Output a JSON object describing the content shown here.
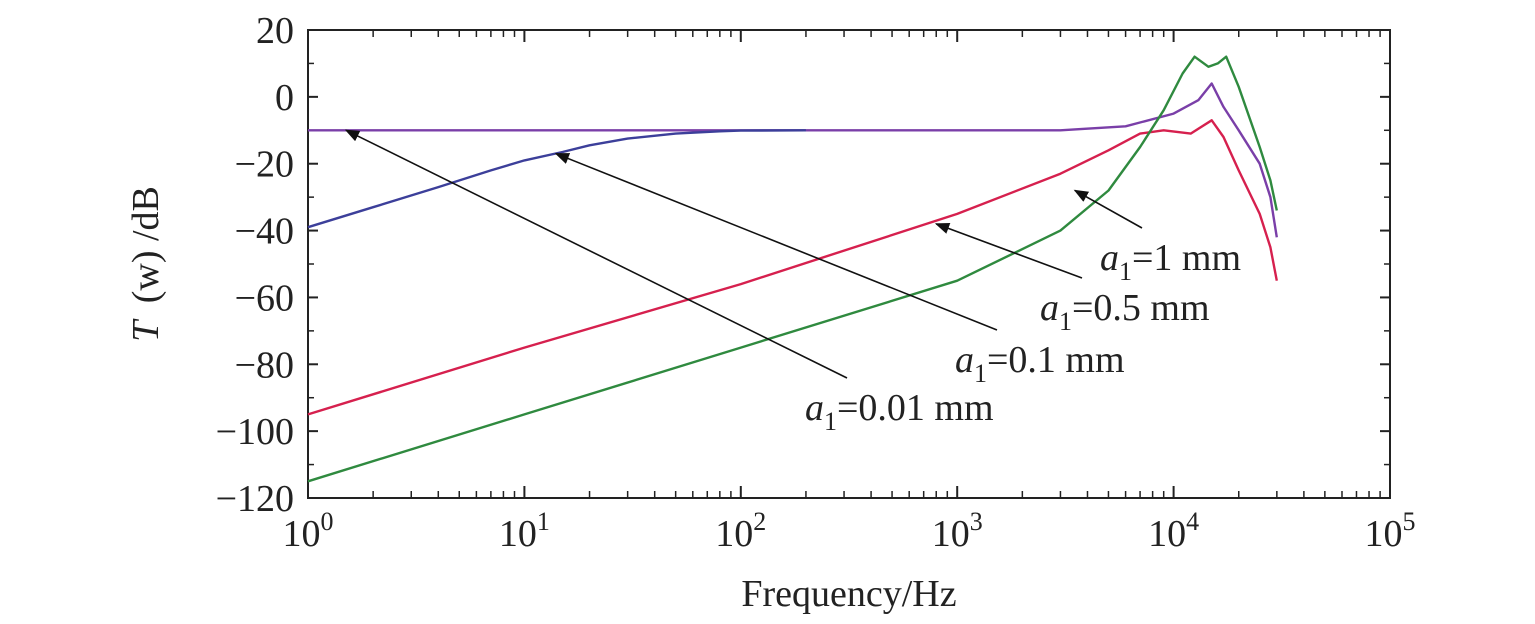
{
  "chart_data": {
    "type": "line",
    "xscale": "log",
    "xlim": [
      1,
      100000
    ],
    "ylim": [
      -120,
      20
    ],
    "xlabel": "Frequency/Hz",
    "ylabel_symbol": "T",
    "ylabel_arg": "(w)",
    "ylabel_unit": "/dB",
    "grid": false,
    "x_ticks": [
      {
        "base": "10",
        "exp": "0",
        "value": 1
      },
      {
        "base": "10",
        "exp": "1",
        "value": 10
      },
      {
        "base": "10",
        "exp": "2",
        "value": 100
      },
      {
        "base": "10",
        "exp": "3",
        "value": 1000
      },
      {
        "base": "10",
        "exp": "4",
        "value": 10000
      },
      {
        "base": "10",
        "exp": "5",
        "value": 100000
      }
    ],
    "y_ticks": [
      {
        "value": 20,
        "label": "20"
      },
      {
        "value": 0,
        "label": "0"
      },
      {
        "value": -20,
        "label": "−20"
      },
      {
        "value": -40,
        "label": "−40"
      },
      {
        "value": -60,
        "label": "−60"
      },
      {
        "value": -80,
        "label": "−80"
      },
      {
        "value": -100,
        "label": "−100"
      },
      {
        "value": -120,
        "label": "−120"
      }
    ],
    "series": [
      {
        "name": "a1=0.01 mm",
        "color": "#7a3fa8",
        "points": [
          [
            1,
            -10
          ],
          [
            10,
            -10
          ],
          [
            100,
            -10
          ],
          [
            1000,
            -10
          ],
          [
            3000,
            -10
          ],
          [
            6000,
            -8.8
          ],
          [
            10000,
            -5
          ],
          [
            13000,
            -1
          ],
          [
            15000,
            4
          ],
          [
            17000,
            -3
          ],
          [
            20000,
            -10
          ],
          [
            25000,
            -20
          ],
          [
            28000,
            -30
          ],
          [
            30000,
            -42
          ]
        ]
      },
      {
        "name": "a1=0.1 mm",
        "color": "#3c3f9a",
        "points": [
          [
            1,
            -39
          ],
          [
            2,
            -33
          ],
          [
            4,
            -27
          ],
          [
            7,
            -22
          ],
          [
            10,
            -19
          ],
          [
            15,
            -16.5
          ],
          [
            20,
            -14.5
          ],
          [
            30,
            -12.5
          ],
          [
            50,
            -11
          ],
          [
            80,
            -10.3
          ],
          [
            100,
            -10.1
          ],
          [
            200,
            -10
          ]
        ]
      },
      {
        "name": "a1=0.5 mm",
        "color": "#d6204e",
        "points": [
          [
            1,
            -95
          ],
          [
            10,
            -75
          ],
          [
            100,
            -56
          ],
          [
            1000,
            -35
          ],
          [
            3000,
            -23
          ],
          [
            5000,
            -16
          ],
          [
            7000,
            -11
          ],
          [
            9000,
            -10
          ],
          [
            12000,
            -11
          ],
          [
            15000,
            -7
          ],
          [
            17000,
            -12
          ],
          [
            20000,
            -22
          ],
          [
            25000,
            -35
          ],
          [
            28000,
            -45
          ],
          [
            30000,
            -55
          ]
        ]
      },
      {
        "name": "a1=1 mm",
        "color": "#2f8a3f",
        "points": [
          [
            1,
            -115
          ],
          [
            10,
            -95
          ],
          [
            100,
            -75
          ],
          [
            1000,
            -55
          ],
          [
            3000,
            -40
          ],
          [
            5000,
            -28
          ],
          [
            7000,
            -15
          ],
          [
            9000,
            -4
          ],
          [
            11000,
            7
          ],
          [
            12500,
            12
          ],
          [
            14500,
            9
          ],
          [
            16000,
            10
          ],
          [
            17500,
            12
          ],
          [
            20000,
            3
          ],
          [
            25000,
            -15
          ],
          [
            28000,
            -25
          ],
          [
            30000,
            -34
          ]
        ]
      }
    ],
    "annotations": [
      {
        "text_var": "a",
        "text_sub": "1",
        "text_rest": "=1 mm",
        "label_x": 1100,
        "label_y": 270,
        "tip": [
          3500,
          -28
        ]
      },
      {
        "text_var": "a",
        "text_sub": "1",
        "text_rest": "=0.5 mm",
        "label_x": 1040,
        "label_y": 320,
        "tip": [
          800,
          -38
        ]
      },
      {
        "text_var": "a",
        "text_sub": "1",
        "text_rest": "=0.1 mm",
        "label_x": 955,
        "label_y": 372,
        "tip": [
          14,
          -17
        ]
      },
      {
        "text_var": "a",
        "text_sub": "1",
        "text_rest": "=0.01 mm",
        "label_x": 805,
        "label_y": 420,
        "tip": [
          1.5,
          -10
        ]
      }
    ]
  }
}
